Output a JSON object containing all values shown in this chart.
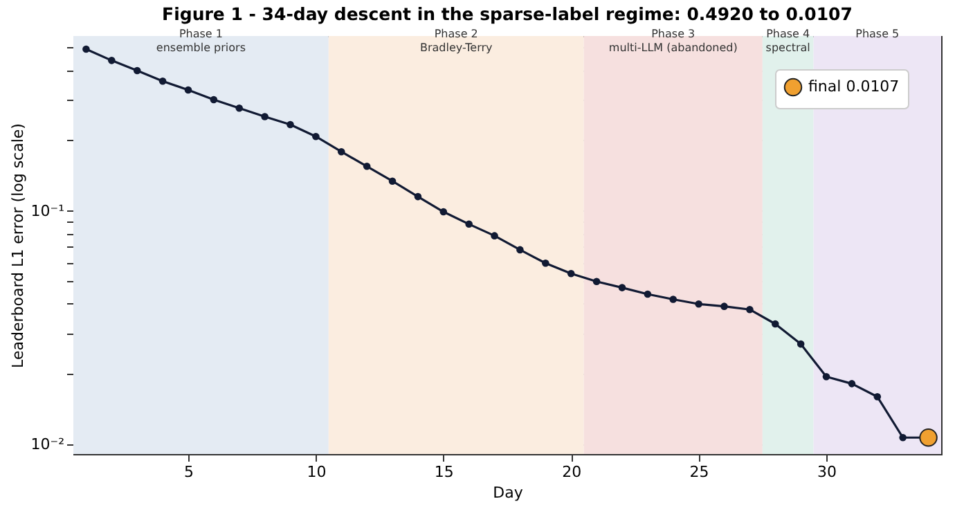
{
  "chart_data": {
    "type": "line",
    "title": "Figure 1 - 34-day descent in the sparse-label regime: 0.4920 to 0.0107",
    "xlabel": "Day",
    "ylabel": "Leaderboard L1 error (log scale)",
    "log": "y",
    "grid": true,
    "marker": "circle",
    "line_style": "solid",
    "legend": "top right",
    "xlim": [
      0.5,
      34.5
    ],
    "xticks": [
      5,
      10,
      15,
      20,
      25,
      30
    ],
    "ylim": [
      0.0091,
      0.56
    ],
    "yticks": [
      {
        "value": 0.01,
        "label": "10⁻²"
      },
      {
        "value": 0.02,
        "label": null
      },
      {
        "value": 0.03,
        "label": null
      },
      {
        "value": 0.04,
        "label": null
      },
      {
        "value": 0.05,
        "label": null
      },
      {
        "value": 0.06,
        "label": null
      },
      {
        "value": 0.07,
        "label": null
      },
      {
        "value": 0.08,
        "label": null
      },
      {
        "value": 0.09,
        "label": null
      },
      {
        "value": 0.1,
        "label": "10⁻¹"
      },
      {
        "value": 0.2,
        "label": null
      },
      {
        "value": 0.3,
        "label": null
      },
      {
        "value": 0.4,
        "label": null
      },
      {
        "value": 0.5,
        "label": null
      }
    ],
    "series": [
      {
        "color": "#111a33",
        "x": [
          1,
          2,
          3,
          4,
          5,
          6,
          7,
          8,
          9,
          10,
          11,
          12,
          13,
          14,
          15,
          16,
          17,
          18,
          19,
          20,
          21,
          22,
          23,
          24,
          25,
          26,
          27,
          28,
          29,
          30,
          31,
          32,
          33,
          34
        ],
        "values": [
          0.492,
          0.44,
          0.398,
          0.359,
          0.329,
          0.299,
          0.275,
          0.253,
          0.234,
          0.208,
          0.179,
          0.155,
          0.134,
          0.115,
          0.099,
          0.0877,
          0.0782,
          0.0681,
          0.0597,
          0.0539,
          0.0498,
          0.0469,
          0.044,
          0.0418,
          0.0399,
          0.039,
          0.0378,
          0.0328,
          0.0269,
          0.0195,
          0.0182,
          0.016,
          0.0107,
          0.0107
        ]
      },
      {
        "type": "scatter",
        "name": "final 0.0107",
        "color": "#f0a030",
        "x": [
          34
        ],
        "values": [
          0.0107
        ]
      }
    ],
    "bands": [
      {
        "axis": "x",
        "from": 0.5,
        "to": 10.5,
        "label": "Phase 1\nensemble priors",
        "color": "#e4ebf3"
      },
      {
        "axis": "x",
        "from": 10.5,
        "to": 20.5,
        "label": "Phase 2\nBradley-Terry",
        "color": "#fbede0"
      },
      {
        "axis": "x",
        "from": 20.5,
        "to": 27.5,
        "label": "Phase 3\nmulti-LLM (abandoned)",
        "color": "#f6e0df"
      },
      {
        "axis": "x",
        "from": 27.5,
        "to": 29.5,
        "label": "Phase 4\nspectral",
        "color": "#e1f1ec"
      },
      {
        "axis": "x",
        "from": 29.5,
        "to": 34.5,
        "label": "Phase 5",
        "color": "#ede6f5"
      }
    ]
  }
}
